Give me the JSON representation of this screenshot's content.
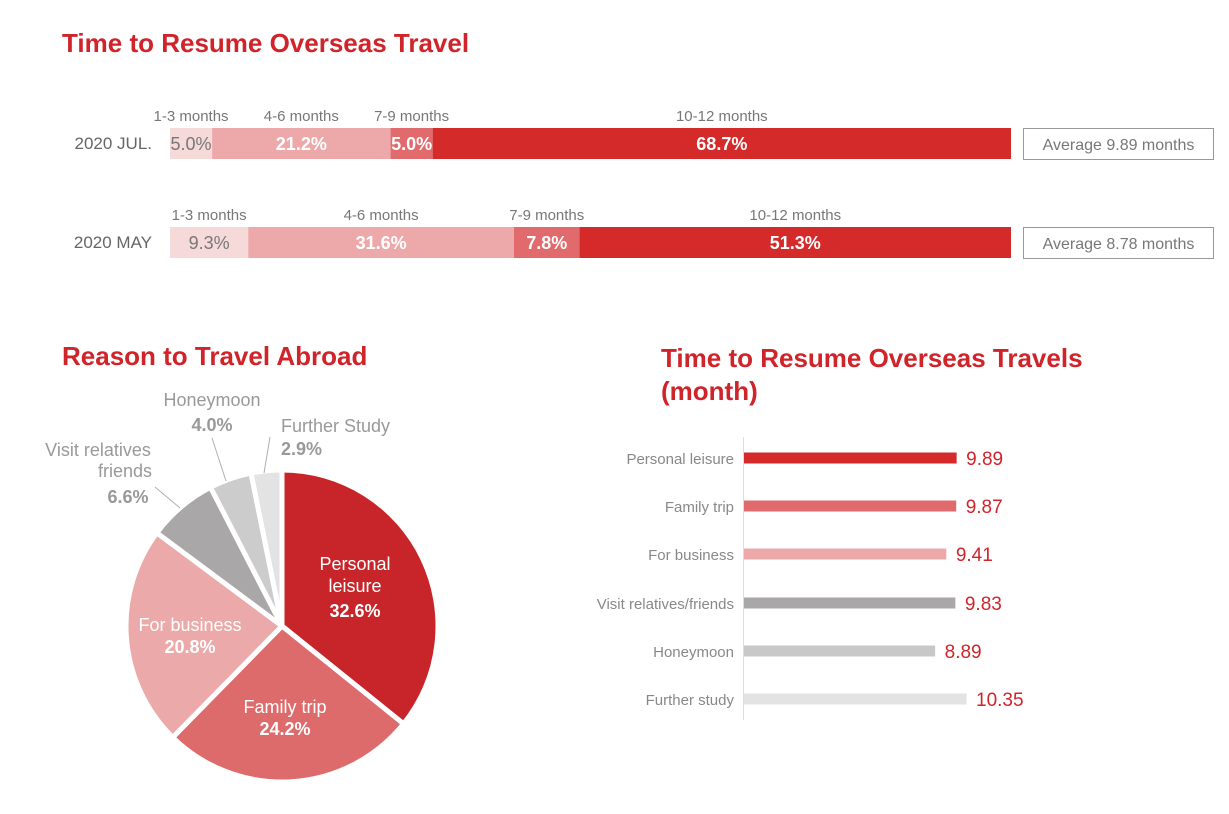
{
  "titles": {
    "stacked": "Time to Resume Overseas Travel",
    "pie": "Reason to Travel Abroad",
    "bars_line1": "Time to Resume Overseas Travels",
    "bars_line2": "(month)"
  },
  "chart_data": [
    {
      "type": "bar",
      "stacked": true,
      "orientation": "horizontal",
      "title": "Time to Resume Overseas Travel",
      "categories": [
        "2020 JUL.",
        "2020 MAY"
      ],
      "series": [
        {
          "name": "1-3 months",
          "values": [
            5.0,
            9.3
          ],
          "labels": [
            "5.0%",
            "9.3%"
          ],
          "color": "#f6dada"
        },
        {
          "name": "4-6 months",
          "values": [
            21.2,
            31.6
          ],
          "labels": [
            "21.2%",
            "31.6%"
          ],
          "color": "#eda9aa"
        },
        {
          "name": "7-9 months",
          "values": [
            5.0,
            7.8
          ],
          "labels": [
            "5.0%",
            "7.8%"
          ],
          "color": "#e06a6c"
        },
        {
          "name": "10-12 months",
          "values": [
            68.7,
            51.3
          ],
          "labels": [
            "68.7%",
            "51.3%"
          ],
          "color": "#d42a2a"
        }
      ],
      "averages": [
        "Average 9.89 months",
        "Average 8.78 months"
      ]
    },
    {
      "type": "pie",
      "title": "Reason to Travel Abroad",
      "slices": [
        {
          "label": "Personal leisure",
          "value": 32.6,
          "value_label": "32.6%",
          "color": "#c8252a"
        },
        {
          "label": "Family trip",
          "value": 24.2,
          "value_label": "24.2%",
          "color": "#de6b6b"
        },
        {
          "label": "For business",
          "value": 20.8,
          "value_label": "20.8%",
          "color": "#eba9a9"
        },
        {
          "label": "Visit relatives friends",
          "value": 6.6,
          "value_label": "6.6%",
          "color": "#a9a7a8"
        },
        {
          "label": "Honeymoon",
          "value": 4.0,
          "value_label": "4.0%",
          "color": "#cccccc"
        },
        {
          "label": "Further Study",
          "value": 2.9,
          "value_label": "2.9%",
          "color": "#e3e3e3"
        }
      ]
    },
    {
      "type": "bar",
      "orientation": "horizontal",
      "title": "Time to Resume Overseas Travels (month)",
      "categories": [
        "Personal leisure",
        "Family trip",
        "For business",
        "Visit relatives/friends",
        "Honeymoon",
        "Further study"
      ],
      "values": [
        9.89,
        9.87,
        9.41,
        9.83,
        8.89,
        10.35
      ],
      "value_labels": [
        "9.89",
        "9.87",
        "9.41",
        "9.83",
        "8.89",
        "10.35"
      ],
      "colors": [
        "#d42a2a",
        "#e06a6c",
        "#eda9aa",
        "#a9a7a8",
        "#c8c8c8",
        "#e3e3e3"
      ],
      "value_color": "#d0232a"
    }
  ]
}
